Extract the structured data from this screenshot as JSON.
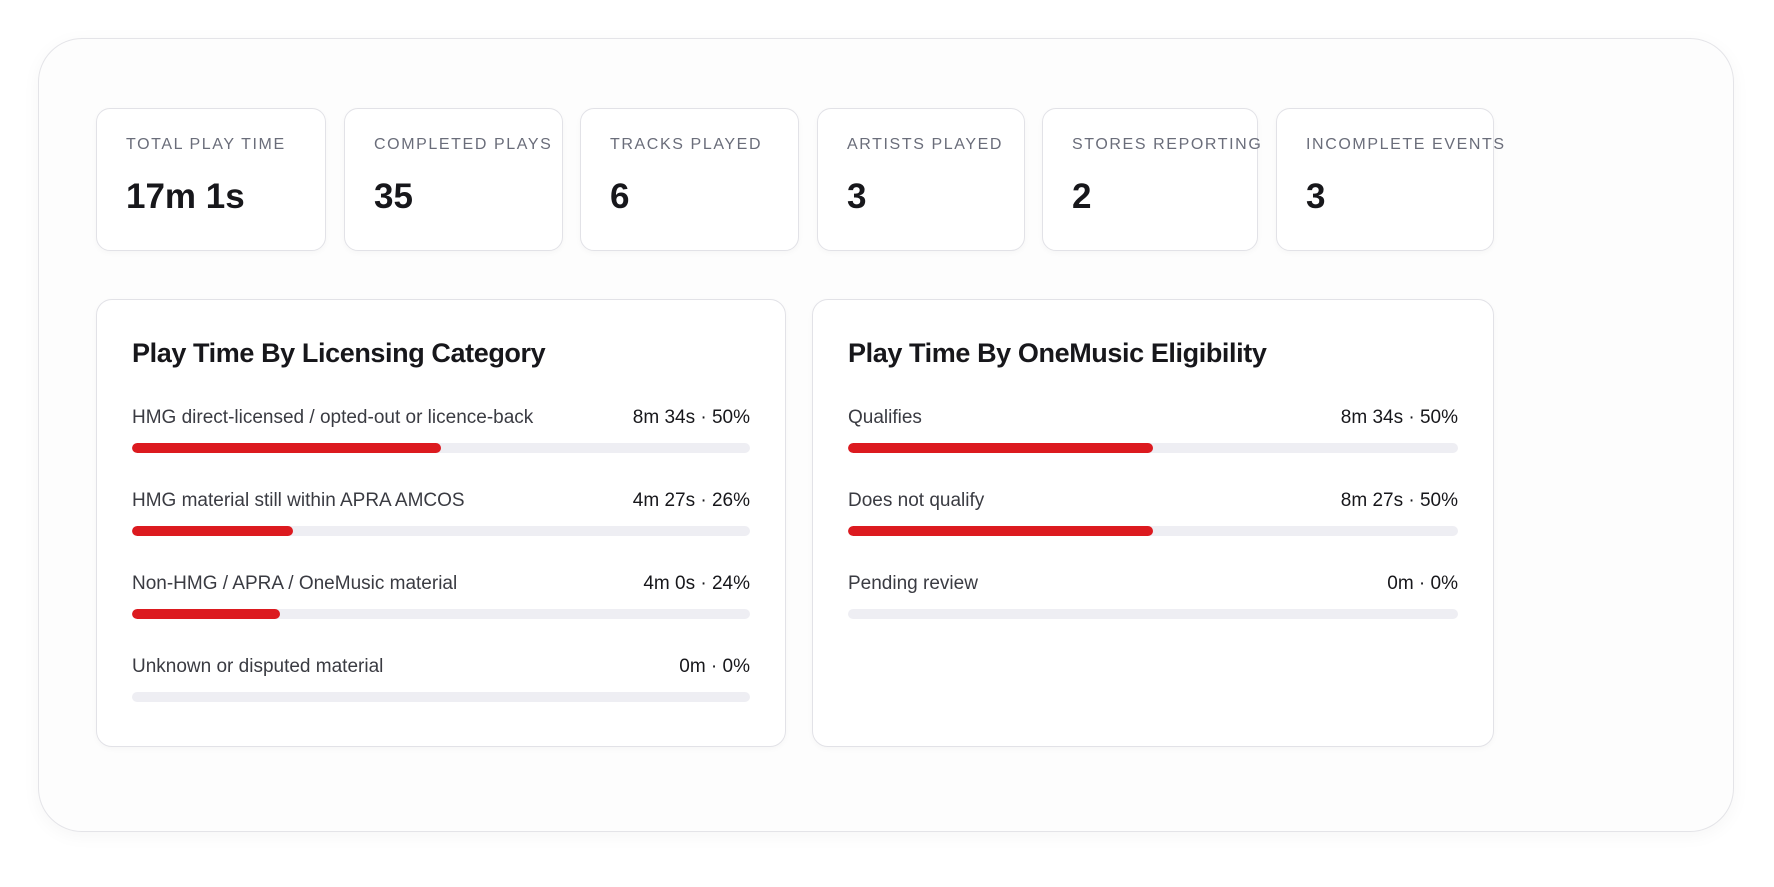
{
  "accent_color": "#dc1a1f",
  "stats": [
    {
      "label": "TOTAL PLAY TIME",
      "value": "17m 1s"
    },
    {
      "label": "COMPLETED PLAYS",
      "value": "35"
    },
    {
      "label": "TRACKS PLAYED",
      "value": "6"
    },
    {
      "label": "ARTISTS PLAYED",
      "value": "3"
    },
    {
      "label": "STORES REPORTING",
      "value": "2"
    },
    {
      "label": "INCOMPLETE EVENTS",
      "value": "3"
    }
  ],
  "licensing": {
    "title": "Play Time By Licensing Category",
    "rows": [
      {
        "label": "HMG direct-licensed / opted-out or licence-back",
        "value": "8m 34s · 50%",
        "percent": 50
      },
      {
        "label": "HMG material still within APRA AMCOS",
        "value": "4m 27s · 26%",
        "percent": 26
      },
      {
        "label": "Non-HMG / APRA / OneMusic material",
        "value": "4m 0s · 24%",
        "percent": 24
      },
      {
        "label": "Unknown or disputed material",
        "value": "0m · 0%",
        "percent": 0
      }
    ]
  },
  "eligibility": {
    "title": "Play Time By OneMusic Eligibility",
    "rows": [
      {
        "label": "Qualifies",
        "value": "8m 34s · 50%",
        "percent": 50
      },
      {
        "label": "Does not qualify",
        "value": "8m 27s · 50%",
        "percent": 50
      },
      {
        "label": "Pending review",
        "value": "0m · 0%",
        "percent": 0
      }
    ]
  }
}
